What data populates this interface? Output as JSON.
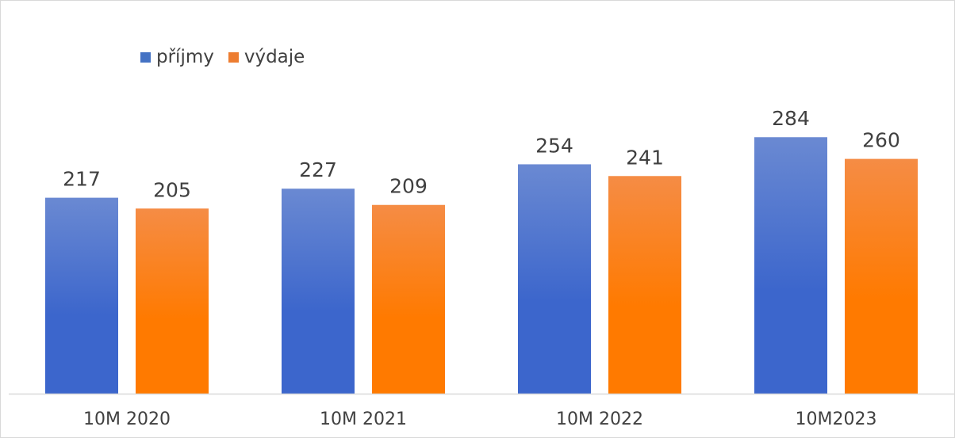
{
  "chart_data": {
    "type": "bar",
    "categories": [
      "10M 2020",
      "10M 2021",
      "10M 2022",
      "10M2023"
    ],
    "series": [
      {
        "name": "příjmy",
        "values": [
          217,
          227,
          254,
          284
        ],
        "color": "#4472c4"
      },
      {
        "name": "výdaje",
        "values": [
          205,
          209,
          241,
          260
        ],
        "color": "#ed7d31"
      }
    ],
    "title": "",
    "xlabel": "",
    "ylabel": "",
    "ylim": [
      0,
      300
    ],
    "grid": false,
    "legend_position": "top-left"
  }
}
